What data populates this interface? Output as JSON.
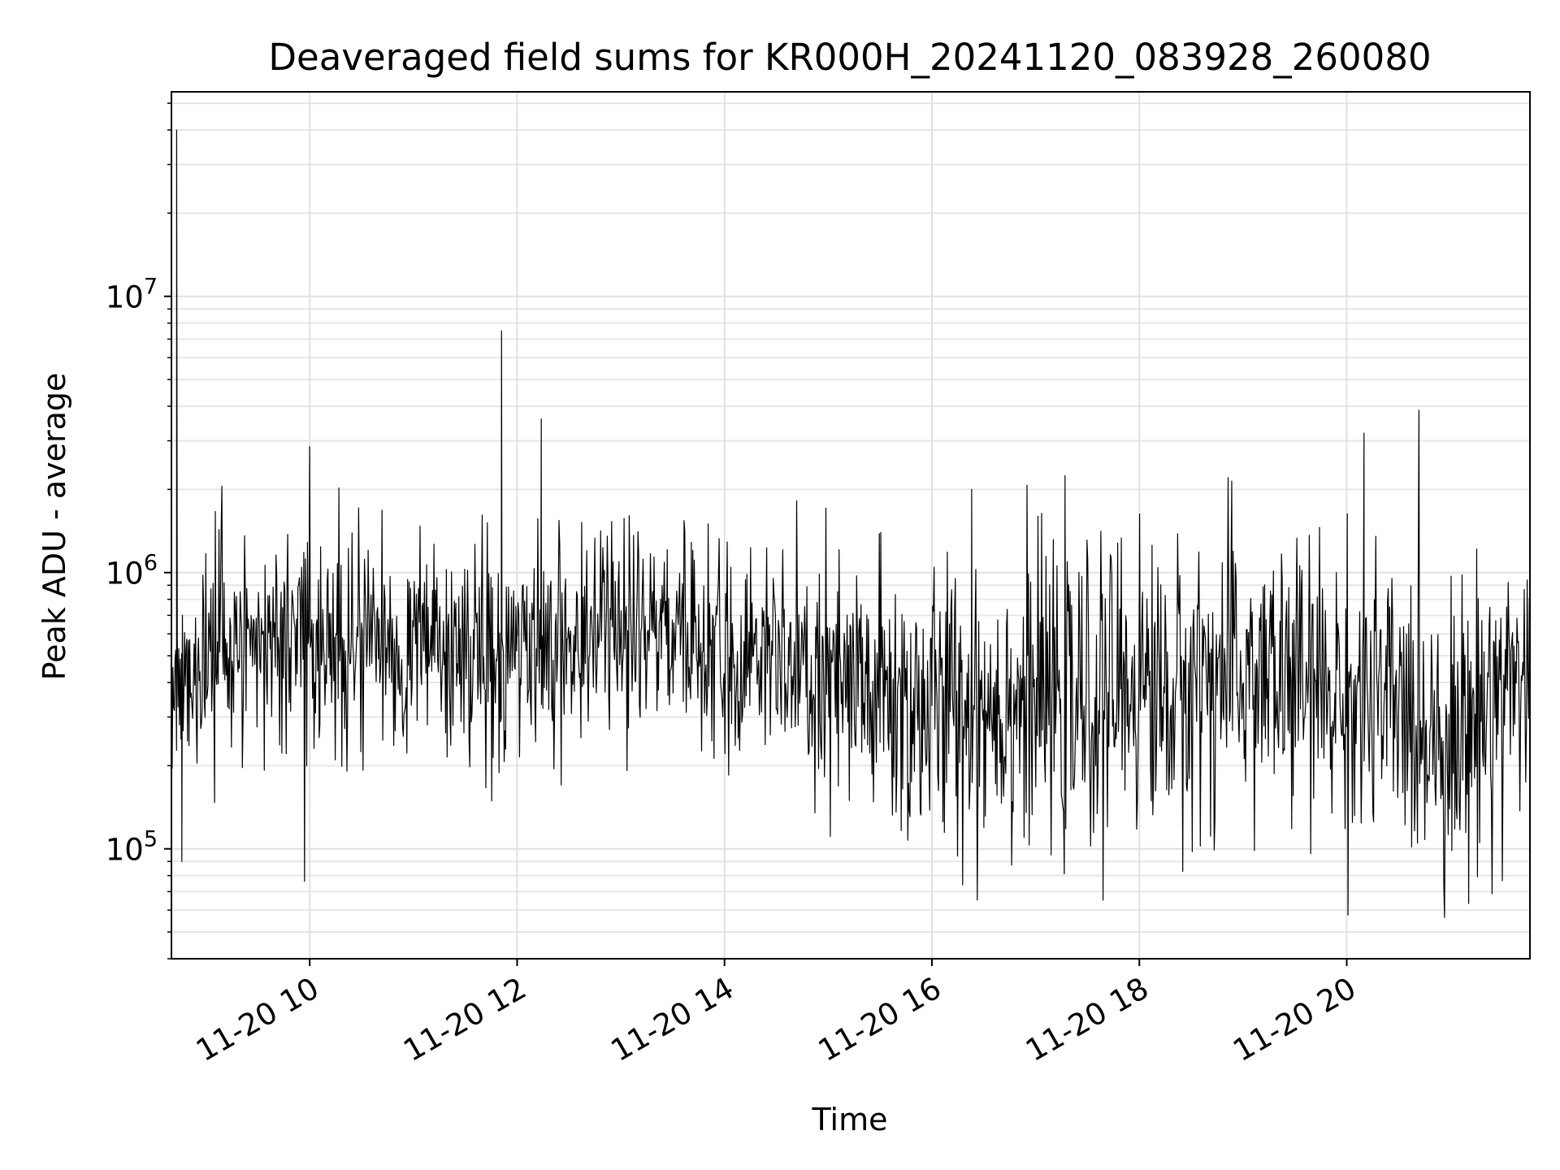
{
  "chart_data": {
    "type": "line",
    "title": "Deaveraged field sums for KR000H_20241120_083928_260080",
    "xlabel": "Time",
    "ylabel": "Peak ADU - average",
    "yscale": "log",
    "xlim": [
      "2024-11-20 08:40",
      "2024-11-20 21:46"
    ],
    "ylim": [
      40000,
      55000000
    ],
    "grid": true,
    "legend": "none",
    "x_ticks": [
      {
        "value": "2024-11-20 10:00",
        "label": "11-20 10"
      },
      {
        "value": "2024-11-20 12:00",
        "label": "11-20 12"
      },
      {
        "value": "2024-11-20 14:00",
        "label": "11-20 14"
      },
      {
        "value": "2024-11-20 16:00",
        "label": "11-20 16"
      },
      {
        "value": "2024-11-20 18:00",
        "label": "11-20 18"
      },
      {
        "value": "2024-11-20 20:00",
        "label": "11-20 20"
      }
    ],
    "y_ticks": [
      {
        "value": 100000,
        "base": "10",
        "exp": "5"
      },
      {
        "value": 1000000,
        "base": "10",
        "exp": "6"
      },
      {
        "value": 10000000,
        "base": "10",
        "exp": "7"
      }
    ],
    "series": [
      {
        "color": "#000000",
        "x": [
          "2024-11-20 08:41",
          "2024-11-20 08:43",
          "2024-11-20 08:46",
          "2024-11-20 08:50",
          "2024-11-20 09:00",
          "2024-11-20 09:15",
          "2024-11-20 09:30",
          "2024-11-20 09:47",
          "2024-11-20 10:00",
          "2024-11-20 10:30",
          "2024-11-20 11:00",
          "2024-11-20 11:20",
          "2024-11-20 11:30",
          "2024-11-20 11:45",
          "2024-11-20 11:51",
          "2024-11-20 12:00",
          "2024-11-20 12:10",
          "2024-11-20 12:14",
          "2024-11-20 12:30",
          "2024-11-20 12:48",
          "2024-11-20 13:00",
          "2024-11-20 13:30",
          "2024-11-20 13:45",
          "2024-11-20 14:00",
          "2024-11-20 14:30",
          "2024-11-20 15:00",
          "2024-11-20 15:30",
          "2024-11-20 15:45",
          "2024-11-20 16:00",
          "2024-11-20 16:23",
          "2024-11-20 16:30",
          "2024-11-20 17:00",
          "2024-11-20 17:30",
          "2024-11-20 18:00",
          "2024-11-20 18:25",
          "2024-11-20 18:30",
          "2024-11-20 19:00",
          "2024-11-20 19:30",
          "2024-11-20 19:55",
          "2024-11-20 20:00",
          "2024-11-20 20:10",
          "2024-11-20 20:30",
          "2024-11-20 20:57",
          "2024-11-20 21:00",
          "2024-11-20 21:30",
          "2024-11-20 21:46"
        ],
        "y": [
          300000,
          40000000,
          90000,
          500000,
          520000,
          600000,
          550000,
          550000,
          560000,
          560000,
          580000,
          580000,
          520000,
          600000,
          7500000,
          620000,
          620000,
          3600000,
          600000,
          600000,
          600000,
          620000,
          550000,
          520000,
          480000,
          360000,
          360000,
          320000,
          330000,
          2000000,
          320000,
          350000,
          320000,
          420000,
          330000,
          420000,
          420000,
          400000,
          360000,
          300000,
          3200000,
          300000,
          280000,
          230000,
          400000,
          450000
        ]
      }
    ]
  }
}
